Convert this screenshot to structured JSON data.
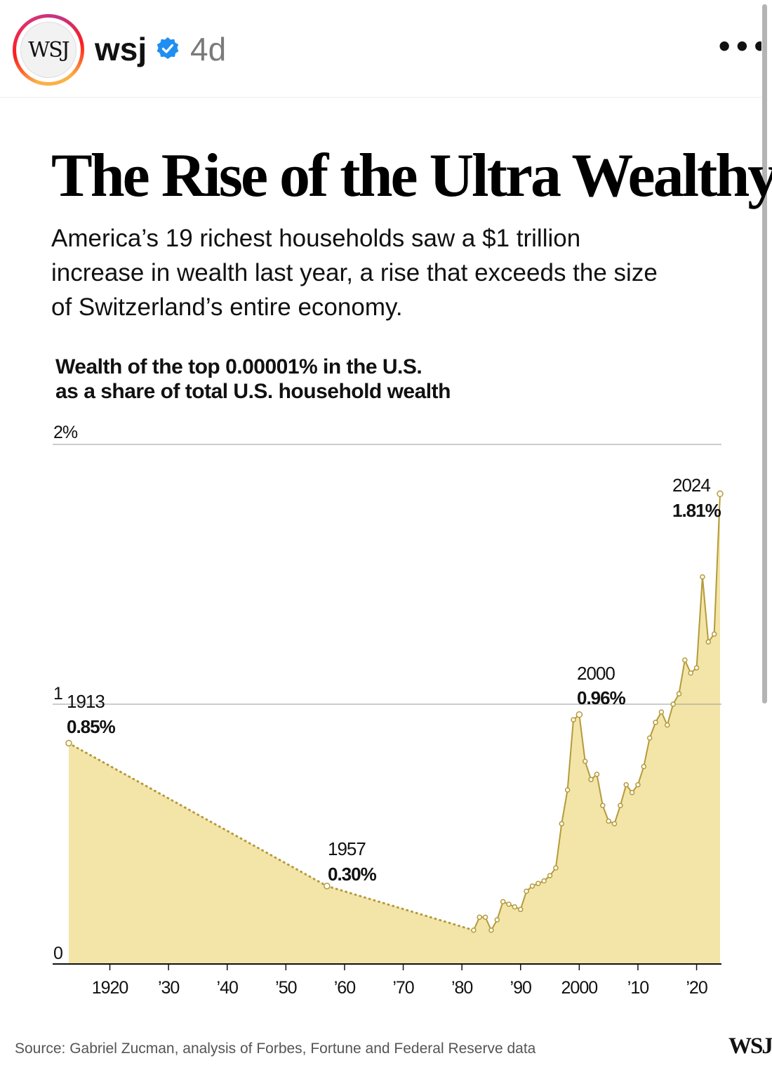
{
  "post": {
    "avatar_text": "WSJ",
    "username": "wsj",
    "age": "4d",
    "more": "•••"
  },
  "headline": "The Rise of the Ultra Wealthy",
  "dek": "America’s 19 richest households saw a $1 trillion increase in wealth last year, a rise that exceeds the size of Switzerland’s entire economy.",
  "chart_title_line1": "Wealth of the top 0.00001% in the U.S.",
  "chart_title_line2": "as a share of total U.S. household wealth",
  "source": "Source: Gabriel Zucman, analysis of Forbes, Fortune and Federal Reserve data",
  "footer_logo": "WSJ",
  "colors": {
    "fill": "#f3e5a8",
    "line": "#b59a3a",
    "grid": "#9a9a9a",
    "axis": "#111111",
    "verified": "#1f8ef1"
  },
  "chart_data": {
    "type": "area",
    "title": "Wealth of the top 0.00001% in the U.S. as a share of total U.S. household wealth",
    "ylim": [
      0,
      2
    ],
    "xlim": [
      1910,
      2025
    ],
    "y_ticks": [
      {
        "value": 2,
        "label": "2%"
      },
      {
        "value": 1,
        "label": "1"
      },
      {
        "value": 0,
        "label": "0"
      }
    ],
    "x_ticks": [
      {
        "value": 1920,
        "label": "1920"
      },
      {
        "value": 1930,
        "label": "’30"
      },
      {
        "value": 1940,
        "label": "’40"
      },
      {
        "value": 1950,
        "label": "’50"
      },
      {
        "value": 1960,
        "label": "’60"
      },
      {
        "value": 1970,
        "label": "’70"
      },
      {
        "value": 1980,
        "label": "’80"
      },
      {
        "value": 1990,
        "label": "’90"
      },
      {
        "value": 2000,
        "label": "2000"
      },
      {
        "value": 2010,
        "label": "’10"
      },
      {
        "value": 2020,
        "label": "’20"
      }
    ],
    "interpolated_segments": [
      {
        "x": [
          1913,
          1957
        ],
        "y": [
          0.85,
          0.3
        ]
      },
      {
        "x": [
          1957,
          1982
        ],
        "y": [
          0.3,
          0.13
        ]
      }
    ],
    "series": [
      {
        "name": "Top 0.00001% share",
        "x": [
          1913,
          1957,
          1982,
          1983,
          1984,
          1985,
          1986,
          1987,
          1988,
          1989,
          1990,
          1991,
          1992,
          1993,
          1994,
          1995,
          1996,
          1997,
          1998,
          1999,
          2000,
          2001,
          2002,
          2003,
          2004,
          2005,
          2006,
          2007,
          2008,
          2009,
          2010,
          2011,
          2012,
          2013,
          2014,
          2015,
          2016,
          2017,
          2018,
          2019,
          2020,
          2021,
          2022,
          2023,
          2024
        ],
        "y": [
          0.85,
          0.3,
          0.13,
          0.18,
          0.18,
          0.13,
          0.17,
          0.24,
          0.23,
          0.22,
          0.21,
          0.28,
          0.3,
          0.31,
          0.32,
          0.34,
          0.37,
          0.54,
          0.67,
          0.94,
          0.96,
          0.78,
          0.71,
          0.73,
          0.61,
          0.55,
          0.54,
          0.61,
          0.69,
          0.66,
          0.69,
          0.76,
          0.87,
          0.93,
          0.97,
          0.92,
          1.0,
          1.04,
          1.17,
          1.12,
          1.14,
          1.49,
          1.24,
          1.27,
          1.81
        ]
      }
    ],
    "annotations": [
      {
        "year": "1913",
        "value": "0.85%"
      },
      {
        "year": "1957",
        "value": "0.30%"
      },
      {
        "year": "2000",
        "value": "0.96%"
      },
      {
        "year": "2024",
        "value": "1.81%"
      }
    ]
  }
}
